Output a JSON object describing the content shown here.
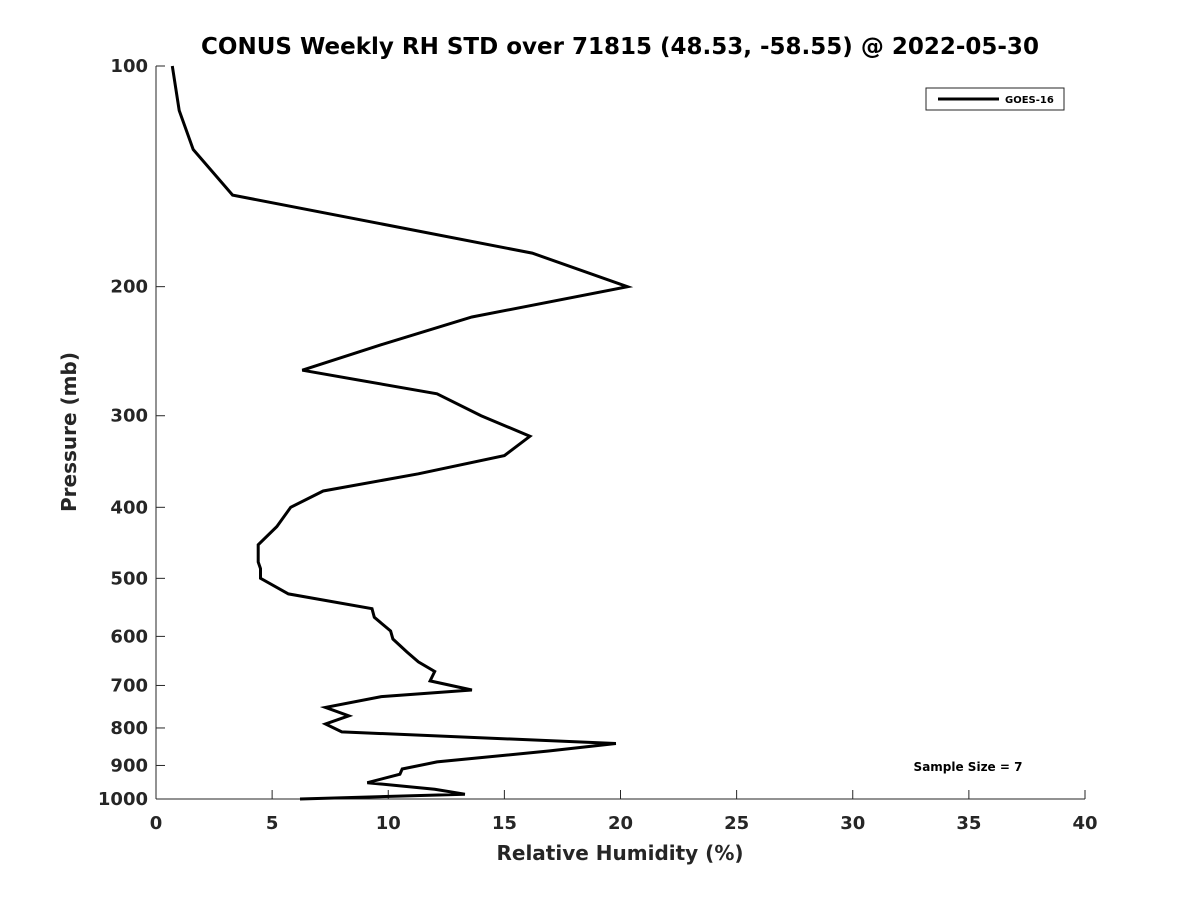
{
  "chart_data": {
    "type": "line",
    "title": "CONUS Weekly RH STD over 71815 (48.53, -58.55) @ 2022-05-30",
    "xlabel": "Relative Humidity (%)",
    "ylabel": "Pressure (mb)",
    "xlim": [
      0,
      40
    ],
    "ylim": [
      100,
      1000
    ],
    "y_scale": "log",
    "y_reversed": true,
    "grid": false,
    "x_ticks": [
      0,
      5,
      10,
      15,
      20,
      25,
      30,
      35,
      40
    ],
    "x_tick_labels": [
      "0",
      "5",
      "10",
      "15",
      "20",
      "25",
      "30",
      "35",
      "40"
    ],
    "y_ticks": [
      100,
      200,
      300,
      400,
      500,
      600,
      700,
      800,
      900,
      1000
    ],
    "y_tick_labels": [
      "100",
      "200",
      "300",
      "400",
      "500",
      "600",
      "700",
      "800",
      "900",
      "1000"
    ],
    "legend_position": "top-right",
    "series": [
      {
        "name": "GOES-16",
        "color": "#000000",
        "x": [
          0.7,
          1.0,
          1.6,
          3.3,
          16.2,
          20.3,
          13.6,
          9.7,
          6.3,
          12.1,
          14.0,
          16.1,
          15.0,
          11.3,
          7.2,
          5.8,
          5.2,
          4.4,
          4.4,
          4.5,
          4.5,
          5.7,
          9.3,
          9.4,
          10.1,
          10.2,
          10.8,
          11.3,
          12.0,
          11.8,
          13.6,
          9.7,
          7.3,
          8.3,
          7.3,
          8.0,
          19.8,
          16.9,
          12.1,
          10.6,
          10.5,
          9.1,
          12.0,
          13.3,
          6.2
        ],
        "y": [
          100,
          115,
          130,
          150,
          180,
          200,
          220,
          240,
          260,
          280,
          300,
          320,
          340,
          360,
          380,
          400,
          425,
          450,
          475,
          485,
          500,
          525,
          550,
          565,
          590,
          605,
          630,
          650,
          670,
          690,
          710,
          725,
          750,
          770,
          790,
          810,
          840,
          860,
          890,
          910,
          925,
          950,
          970,
          985,
          1000
        ]
      }
    ],
    "annotations": [
      "Sample Size = 7"
    ]
  }
}
